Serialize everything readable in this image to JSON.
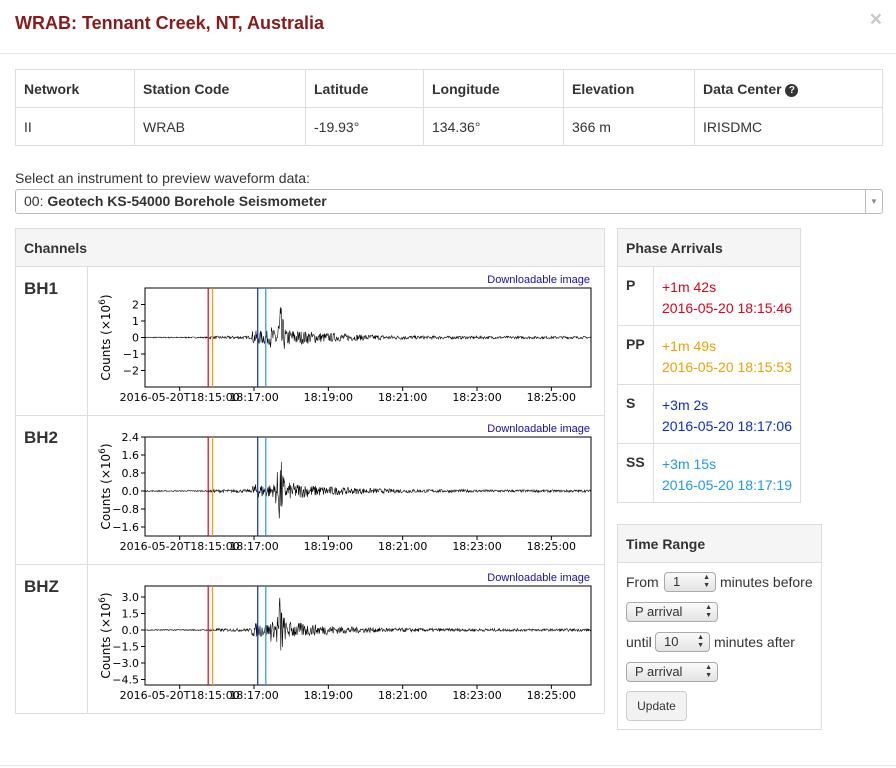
{
  "modal": {
    "title": "WRAB: Tennant Creek, NT, Australia",
    "close": "×"
  },
  "station": {
    "headers": [
      "Network",
      "Station Code",
      "Latitude",
      "Longitude",
      "Elevation",
      "Data Center"
    ],
    "values": [
      "II",
      "WRAB",
      "-19.93°",
      "134.36°",
      "366 m",
      "IRISDMC"
    ],
    "help_icon": "question-circle-icon"
  },
  "instrument": {
    "label": "Select an instrument to preview waveform data:",
    "selected_prefix": "00:",
    "selected_name": "Geotech KS-54000 Borehole Seismometer"
  },
  "channels": {
    "header": "Channels",
    "download_label": "Downloadable image",
    "items": [
      {
        "name": "BH1",
        "ylabel_base": "Counts (×10",
        "ylabel_exp": "6",
        "ylabel_close": ")",
        "yticks": [
          "2",
          "1",
          "0",
          "−1",
          "−2"
        ],
        "yticks_values": [
          2,
          1,
          0,
          -1,
          -2
        ],
        "yrange": [
          -3,
          3
        ]
      },
      {
        "name": "BH2",
        "ylabel_base": "Counts (×10",
        "ylabel_exp": "6",
        "ylabel_close": ")",
        "yticks": [
          "2.4",
          "1.6",
          "0.8",
          "0.0",
          "−0.8",
          "−1.6"
        ],
        "yticks_values": [
          2.4,
          1.6,
          0.8,
          0.0,
          -0.8,
          -1.6
        ],
        "yrange": [
          -2.0,
          2.4
        ]
      },
      {
        "name": "BHZ",
        "ylabel_base": "Counts (×10",
        "ylabel_exp": "6",
        "ylabel_close": ")",
        "yticks": [
          "3.0",
          "1.5",
          "0.0",
          "−1.5",
          "−3.0",
          "−4.5"
        ],
        "yticks_values": [
          3.0,
          1.5,
          0.0,
          -1.5,
          -3.0,
          -4.5
        ],
        "yrange": [
          -5.0,
          4.0
        ]
      }
    ],
    "xticks": [
      "2016-05-20T18:15:00",
      "18:17:00",
      "18:19:00",
      "18:21:00",
      "18:23:00",
      "18:25:00"
    ]
  },
  "chart_data": {
    "type": "line",
    "x_axis": "time",
    "x_range": [
      "2016-05-20T18:14:04",
      "2016-05-20T18:26:04"
    ],
    "phase_markers": [
      {
        "phase": "P",
        "time": "2016-05-20T18:15:46",
        "color": "#e2001a"
      },
      {
        "phase": "PP",
        "time": "2016-05-20T18:15:53",
        "color": "#f0a000"
      },
      {
        "phase": "S",
        "time": "2016-05-20T18:17:06",
        "color": "#0b2bd0"
      },
      {
        "phase": "SS",
        "time": "2016-05-20T18:17:19",
        "color": "#1e9be8"
      }
    ]
  },
  "phases": {
    "header": "Phase Arrivals",
    "items": [
      {
        "name": "P",
        "offset": "+1m 42s",
        "time": "2016-05-20 18:15:46",
        "color": "#e2001a"
      },
      {
        "name": "PP",
        "offset": "+1m 49s",
        "time": "2016-05-20 18:15:53",
        "color": "#f0a000"
      },
      {
        "name": "S",
        "offset": "+3m 2s",
        "time": "2016-05-20 18:17:06",
        "color": "#0b2bd0"
      },
      {
        "name": "SS",
        "offset": "+3m 15s",
        "time": "2016-05-20 18:17:19",
        "color": "#1e9be8"
      }
    ]
  },
  "time_range": {
    "header": "Time Range",
    "from_label": "From",
    "before_value": "1",
    "before_label": "minutes before",
    "before_phase": "P arrival",
    "until_label": "until",
    "after_value": "10",
    "after_label": "minutes after",
    "after_phase": "P arrival",
    "update_label": "Update"
  }
}
